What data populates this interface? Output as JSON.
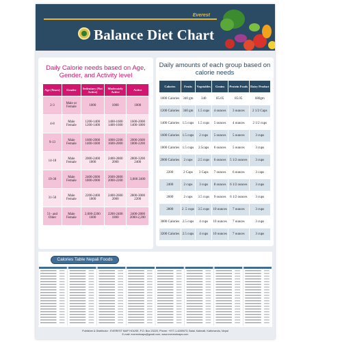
{
  "header": {
    "brand": "Everest",
    "title": "Balance Diet Chart"
  },
  "calorie_needs": {
    "title": "Daily Calorie needs based on Age, Gender, and Activity level",
    "columns": [
      "Age (Years)",
      "Gender",
      "Sedentary (Not Active)",
      "Moderately Active",
      "Active"
    ],
    "rows": [
      [
        "2-3",
        "Male or Female",
        "1000",
        "1000",
        "1000"
      ],
      [
        "4-8",
        "Male Female",
        "1200-1400 1200-1400",
        "1400-1600 1400-1600",
        "1600-2000 1400-1800"
      ],
      [
        "9-13",
        "Male Female",
        "1600-2000 1400-1600",
        "1800-2200 1600-2000",
        "2000-2600 1800-2200"
      ],
      [
        "14-18",
        "Male Female",
        "2000-2400 1800",
        "2400-2800 2000",
        "2800-3200 2400"
      ],
      [
        "19-30",
        "Male Female",
        "2400-2600 1800-2000",
        "2600-2800 2000-2200",
        "3,000 2400"
      ],
      [
        "31-50",
        "Male Female",
        "2200-2400 1800",
        "2400-2600 2000",
        "2800-3000 2200"
      ],
      [
        "51- and Older",
        "Male Female",
        "2,000-2200 1600",
        "2200-2400 1800",
        "2400-2800 2000-2,200"
      ]
    ]
  },
  "food_groups": {
    "title": "Daily amounts of each group based on calorie needs",
    "columns": [
      "Calories",
      "Fruits",
      "Vegetables",
      "Grains",
      "Protein Foods",
      "Dairy Product"
    ],
    "rows": [
      [
        "1000 Calories",
        "340 gm",
        "340",
        "85.05",
        "85.05",
        "680gm"
      ],
      [
        "1200 Calories",
        "340 gm",
        "1.5 cups",
        "4 ounces",
        "3 ounces",
        "2 1/2 Cups"
      ],
      [
        "1400 Calories",
        "1.5 cups",
        "1.5 cups",
        "5 ounces",
        "4 ounces",
        "2 1/2 cups"
      ],
      [
        "1600 Calories",
        "1.5 cups",
        "2 cups",
        "5 ounces",
        "5 ounces",
        "3 cups"
      ],
      [
        "1800 Calories",
        "1.5 cups",
        "2.5caps",
        "6 ounces",
        "5 ounces",
        "3 cups"
      ],
      [
        "2000 Calories",
        "2 cups",
        "2.5 cups",
        "6 ounces",
        "5 1/2 ounces",
        "3 cups"
      ],
      [
        "2200",
        "2 Caps",
        "3 Caps",
        "7 ounces",
        "6 ounces",
        "3 caps"
      ],
      [
        "2400",
        "2 cups",
        "3 cups",
        "8 ounces",
        "6 1/2 ounces",
        "3 cups"
      ],
      [
        "2600",
        "2 cups",
        "3.5 cups",
        "9 ounces",
        "6 1/2 ounces",
        "3 cups"
      ],
      [
        "2800",
        "2 .5 cups",
        "3.5 cups",
        "10 ounces",
        "7 ounces",
        "3 cups"
      ],
      [
        "3000 Calories",
        "2.5 cups",
        "4 cups",
        "10 ounces",
        "7 ounces",
        "3 cups"
      ],
      [
        "3200 Calories",
        "2.5 cups",
        "4 cups",
        "10 ounces",
        "7 ounces",
        "3 cups"
      ]
    ]
  },
  "calories_table": {
    "title": "Calories Table Nepali Foods"
  },
  "footer": {
    "line1": "Publisher & Distributor : EVEREST MAP HOUSE, P.O. Box 23220, Phone: +977-1-4289073, Balal, Kalimati, Kathmandu, Nepal",
    "line2": "E-mail: everestmaps@gmail.com, www.everestmaps.com"
  },
  "colors": {
    "navy": "#2b4a63",
    "magenta": "#d2156e",
    "gold": "#f2b81f"
  }
}
